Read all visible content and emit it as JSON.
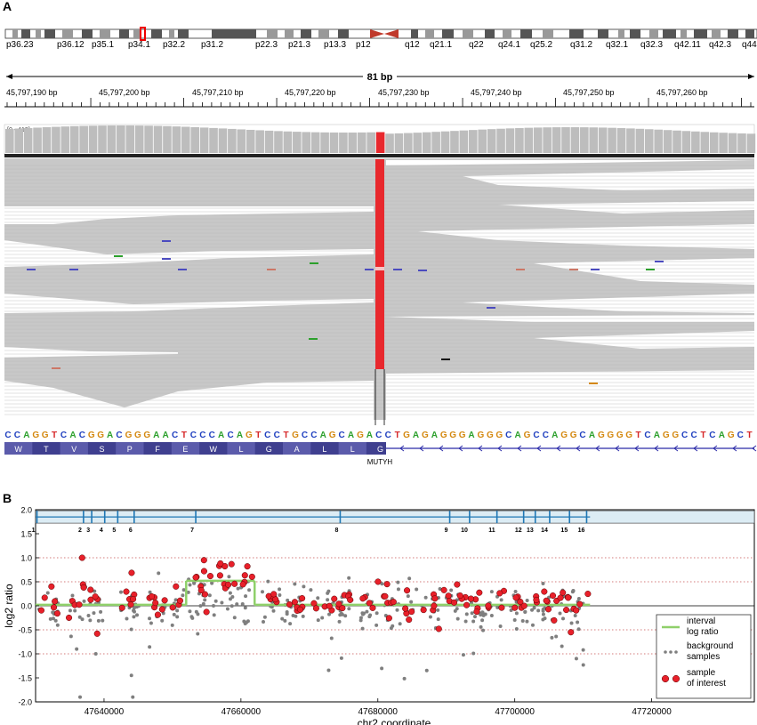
{
  "panel_a": {
    "label": "A",
    "ideogram_bands": [
      "p36.23",
      "p36.12",
      "p35.1",
      "p34.1",
      "p32.2",
      "p31.2",
      "p22.3",
      "p21.3",
      "p13.3",
      "p12",
      "q12",
      "q21.1",
      "q22",
      "q24.1",
      "q25.2",
      "q31.2",
      "q32.1",
      "q32.3",
      "q42.11",
      "q42.3",
      "q44"
    ],
    "span_label": "81 bp",
    "ruler_ticks": [
      "45,797,190 bp",
      "45,797,200 bp",
      "45,797,210 bp",
      "45,797,220 bp",
      "45,797,230 bp",
      "45,797,240 bp",
      "45,797,250 bp",
      "45,797,260 bp"
    ],
    "coverage_range": "[0 - 419]",
    "reference_sequence": "CCAGGTCACGGACGGGAACTCCCACAGTCCTGCCAGCAGACCTGAGAGGGAGGGCAGCCAGGCAGGGGTCAGGCCTCAGCT",
    "amino_acids": [
      "W",
      "T",
      "V",
      "S",
      "P",
      "F",
      "E",
      "W",
      "L",
      "G",
      "A",
      "L",
      "L",
      "G"
    ],
    "gene_name": "MUTYH",
    "colors": {
      "A": "#2ca02c",
      "C": "#1f3fbf",
      "G": "#d4880f",
      "T": "#d62728",
      "variant": "#e8282d",
      "read": "#c8c8c8",
      "protein": "#3f3f8f"
    }
  },
  "panel_b": {
    "label": "B",
    "exon_labels": [
      "1",
      "2",
      "3",
      "4",
      "5",
      "6",
      "7",
      "8",
      "9",
      "10",
      "11",
      "12",
      "13",
      "14",
      "15",
      "16"
    ],
    "chart_data": {
      "type": "scatter",
      "xlabel": "chr2 coordinate",
      "ylabel": "log2 ratio",
      "xlim": [
        47630000,
        47735000
      ],
      "ylim": [
        -2.0,
        2.0
      ],
      "xticks": [
        47640000,
        47660000,
        47680000,
        47700000,
        47720000
      ],
      "yticks": [
        -2.0,
        -1.5,
        -1.0,
        -0.5,
        0.0,
        0.5,
        1.0,
        1.5,
        2.0
      ],
      "exon_positions": [
        47630200,
        47637000,
        47638200,
        47640100,
        47642000,
        47644400,
        47653400,
        47674500,
        47690500,
        47693400,
        47697400,
        47701300,
        47703000,
        47705100,
        47708000,
        47710500
      ],
      "interval_log_ratio": [
        {
          "x0": 47630000,
          "x1": 47652000,
          "y": 0.02
        },
        {
          "x0": 47652000,
          "x1": 47662000,
          "y": 0.52
        },
        {
          "x0": 47662000,
          "x1": 47711000,
          "y": 0.02
        }
      ],
      "legend": [
        {
          "name": "interval log ratio",
          "color": "#8fd06a"
        },
        {
          "name": "background samples",
          "color": "#808080"
        },
        {
          "name": "sample of interest",
          "color": "#e8202a"
        }
      ],
      "legend_position": "lower-right",
      "grid": "horizontal dotted at ±0.5, ±1.0"
    }
  }
}
